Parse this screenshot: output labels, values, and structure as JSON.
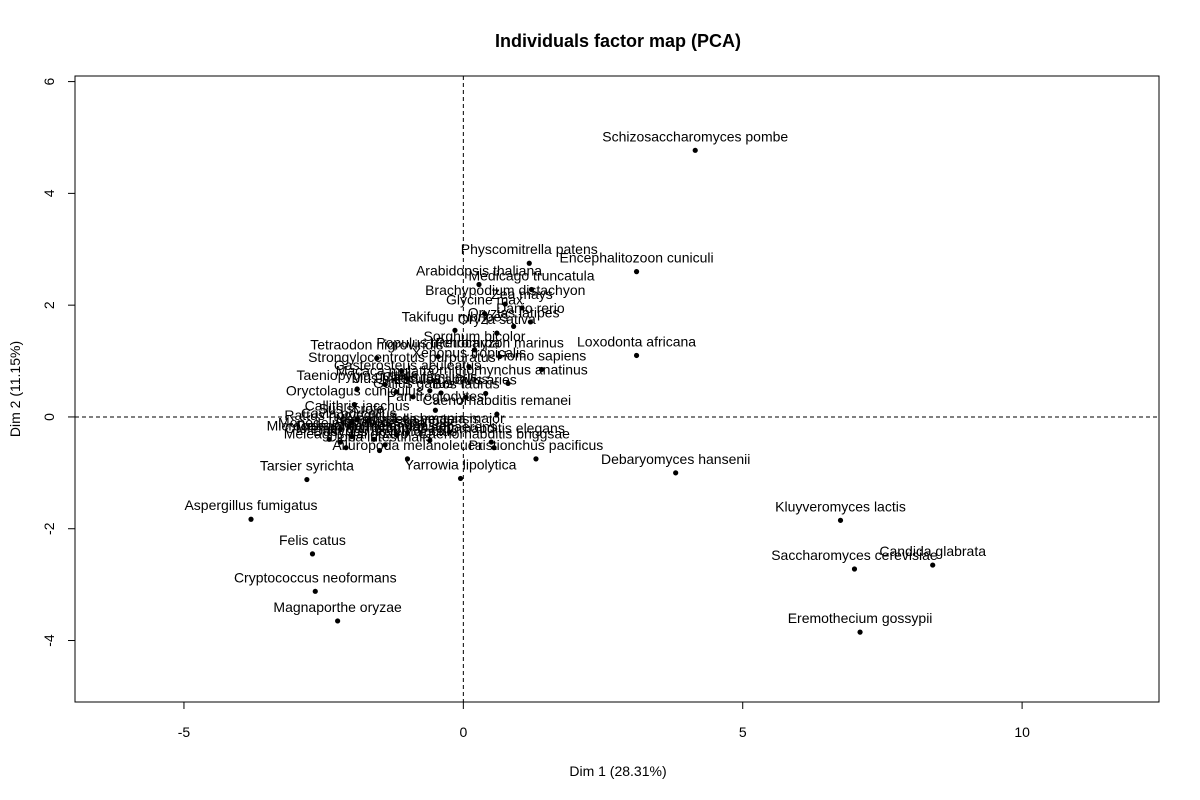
{
  "chart_data": {
    "type": "scatter",
    "title": "Individuals factor map (PCA)",
    "xlabel": "Dim 1 (28.31%)",
    "ylabel": "Dim 2 (11.15%)",
    "xlim": [
      -6.95,
      12.45
    ],
    "ylim": [
      -5.1,
      6.1
    ],
    "xticks": [
      -5,
      0,
      5,
      10
    ],
    "xtick_labels": [
      "-5",
      "0",
      "5",
      "10"
    ],
    "yticks": [
      -4,
      -2,
      0,
      2,
      4,
      6
    ],
    "ytick_labels": [
      "-4",
      "-2",
      "0",
      "2",
      "4",
      "6"
    ],
    "reference_lines": {
      "x": 0,
      "y": 0,
      "style": "dashed"
    },
    "grid": false,
    "points": [
      {
        "label": "Schizosaccharomyces pombe",
        "x": 4.15,
        "y": 4.77
      },
      {
        "label": "Physcomitrella patens",
        "x": 1.18,
        "y": 2.75
      },
      {
        "label": "Encephalitozoon cuniculi",
        "x": 3.1,
        "y": 2.6
      },
      {
        "label": "Arabidopsis thaliana",
        "x": 0.28,
        "y": 2.37
      },
      {
        "label": "Medicago truncatula",
        "x": 1.22,
        "y": 2.28
      },
      {
        "label": "Brachypodium distachyon",
        "x": 0.75,
        "y": 2.02
      },
      {
        "label": "Glycine max",
        "x": 0.38,
        "y": 1.85
      },
      {
        "label": "Zea mays",
        "x": 1.05,
        "y": 1.95
      },
      {
        "label": "Danio rerio",
        "x": 1.2,
        "y": 1.7
      },
      {
        "label": "Oryzias latipes",
        "x": 0.9,
        "y": 1.62
      },
      {
        "label": "Takifugu rubripes",
        "x": -0.15,
        "y": 1.55
      },
      {
        "label": "Oryza sativa",
        "x": 0.6,
        "y": 1.5
      },
      {
        "label": "Loxodonta africana",
        "x": 3.1,
        "y": 1.1
      },
      {
        "label": "Tetraodon nigroviridis",
        "x": -1.55,
        "y": 1.05
      },
      {
        "label": "Populus trichocarpa",
        "x": -0.45,
        "y": 1.08
      },
      {
        "label": "Petromyzon marinus",
        "x": 0.65,
        "y": 1.08
      },
      {
        "label": "Sorghum bicolor",
        "x": 0.2,
        "y": 1.2
      },
      {
        "label": "Homo sapiens",
        "x": 1.4,
        "y": 0.85
      },
      {
        "label": "Xenopus tropicalis",
        "x": 0.1,
        "y": 0.9
      },
      {
        "label": "Strongylocentrotus purpuratus",
        "x": -1.1,
        "y": 0.82
      },
      {
        "label": "Ornithorhynchus anatinus",
        "x": 0.8,
        "y": 0.6
      },
      {
        "label": "Gasterosteus aculeatus",
        "x": -1.0,
        "y": 0.68
      },
      {
        "label": "Taeniopygia guttata",
        "x": -1.9,
        "y": 0.5
      },
      {
        "label": "Macaca mulatta",
        "x": -1.4,
        "y": 0.58
      },
      {
        "label": "Mus musculus",
        "x": -1.2,
        "y": 0.45
      },
      {
        "label": "Canis familiaris",
        "x": -0.6,
        "y": 0.47
      },
      {
        "label": "Equus caballus",
        "x": -0.4,
        "y": 0.43
      },
      {
        "label": "Bos taurus",
        "x": 0.05,
        "y": 0.35
      },
      {
        "label": "Ovis aries",
        "x": 0.4,
        "y": 0.42
      },
      {
        "label": "Gallus gallus",
        "x": -0.9,
        "y": 0.36
      },
      {
        "label": "Pan troglodytes",
        "x": -0.5,
        "y": 0.12
      },
      {
        "label": "Oryctolagus cuniculus",
        "x": -1.95,
        "y": 0.22
      },
      {
        "label": "Caenorhabditis remanei",
        "x": 0.6,
        "y": 0.05
      },
      {
        "label": "Rattus norvegicus",
        "x": -2.2,
        "y": -0.22
      },
      {
        "label": "Sus scrofa",
        "x": -2.0,
        "y": -0.1
      },
      {
        "label": "Callithrix jacchus",
        "x": -1.9,
        "y": -0.05
      },
      {
        "label": "Cavia porcellus",
        "x": -2.05,
        "y": -0.18
      },
      {
        "label": "Monodelphis domestica",
        "x": -2.0,
        "y": -0.35
      },
      {
        "label": "Drosophila melanogaster",
        "x": -1.6,
        "y": -0.4
      },
      {
        "label": "Anopheles gambiae",
        "x": -1.2,
        "y": -0.32
      },
      {
        "label": "Nematostella vectensis",
        "x": -1.0,
        "y": -0.28
      },
      {
        "label": "Trichoplax adhaerens",
        "x": -0.6,
        "y": -0.42
      },
      {
        "label": "Leishmania major",
        "x": -0.25,
        "y": -0.27
      },
      {
        "label": "Caenorhabditis elegans",
        "x": 0.5,
        "y": -0.45
      },
      {
        "label": "Microcebus murinus",
        "x": -2.4,
        "y": -0.4
      },
      {
        "label": "Otolemur garnettii",
        "x": -2.2,
        "y": -0.45
      },
      {
        "label": "Dasypus novemcinctus",
        "x": -1.4,
        "y": -0.5
      },
      {
        "label": "Caenorhabditis briggsae",
        "x": 0.55,
        "y": -0.55
      },
      {
        "label": "Meleagris gallopavo",
        "x": -2.1,
        "y": -0.55
      },
      {
        "label": "Ciona intestinalis",
        "x": -1.5,
        "y": -0.6
      },
      {
        "label": "Ailuropoda melanoleuca",
        "x": -1.0,
        "y": -0.75
      },
      {
        "label": "Tarsier syrichta",
        "x": -2.8,
        "y": -1.12
      },
      {
        "label": "Pristionchus pacificus",
        "x": 1.3,
        "y": -0.75
      },
      {
        "label": "Debaryomyces hansenii",
        "x": 3.8,
        "y": -1.0
      },
      {
        "label": "Yarrowia lipolytica",
        "x": -0.05,
        "y": -1.1
      },
      {
        "label": "Aspergillus fumigatus",
        "x": -3.8,
        "y": -1.83
      },
      {
        "label": "Felis catus",
        "x": -2.7,
        "y": -2.45
      },
      {
        "label": "Cryptococcus neoformans",
        "x": -2.65,
        "y": -3.12
      },
      {
        "label": "Magnaporthe oryzae",
        "x": -2.25,
        "y": -3.65
      },
      {
        "label": "Kluyveromyces lactis",
        "x": 6.75,
        "y": -1.85
      },
      {
        "label": "Saccharomyces cerevisiae",
        "x": 7.0,
        "y": -2.72
      },
      {
        "label": "Candida glabrata",
        "x": 8.4,
        "y": -2.65
      },
      {
        "label": "Eremothecium gossypii",
        "x": 7.1,
        "y": -3.85
      }
    ]
  }
}
